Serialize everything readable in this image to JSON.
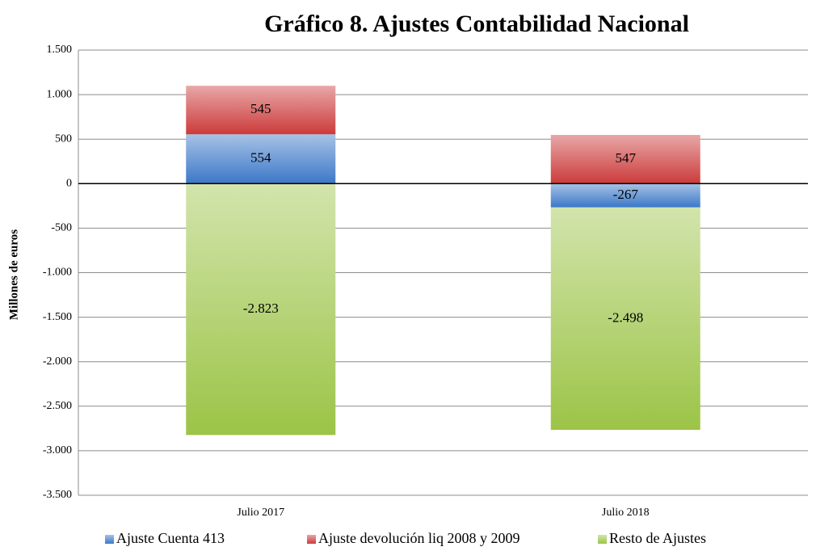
{
  "chart_data": {
    "type": "stacked_bar",
    "title": "Gráfico 8. Ajustes Contabilidad Nacional",
    "y_label": "Millones de euros",
    "categories": [
      "Julio 2017",
      "Julio 2018"
    ],
    "series": [
      {
        "name": "Ajuste Cuenta 413",
        "color": "#3b78c8",
        "values": [
          554,
          -267
        ]
      },
      {
        "name": "Ajuste devolución liq 2008 y 2009",
        "color": "#cc3b3b",
        "values": [
          545,
          547
        ]
      },
      {
        "name": "Resto de Ajustes",
        "color": "#9cc447",
        "values": [
          -2823,
          -2498
        ],
        "value_labels": [
          "-2.823",
          "-2.498"
        ]
      }
    ],
    "ylim": [
      -3500,
      1500
    ],
    "yticks": [
      {
        "value": -3500,
        "label": "-3.500"
      },
      {
        "value": -3000,
        "label": "-3.000"
      },
      {
        "value": -2500,
        "label": "-2.500"
      },
      {
        "value": -2000,
        "label": "-2.000"
      },
      {
        "value": -1500,
        "label": "-1.500"
      },
      {
        "value": -1000,
        "label": "-1.000"
      },
      -500,
      0,
      500,
      {
        "value": 1000,
        "label": "1.000"
      },
      {
        "value": 1500,
        "label": "1.500"
      }
    ],
    "grid": true,
    "legend": "bottom"
  }
}
